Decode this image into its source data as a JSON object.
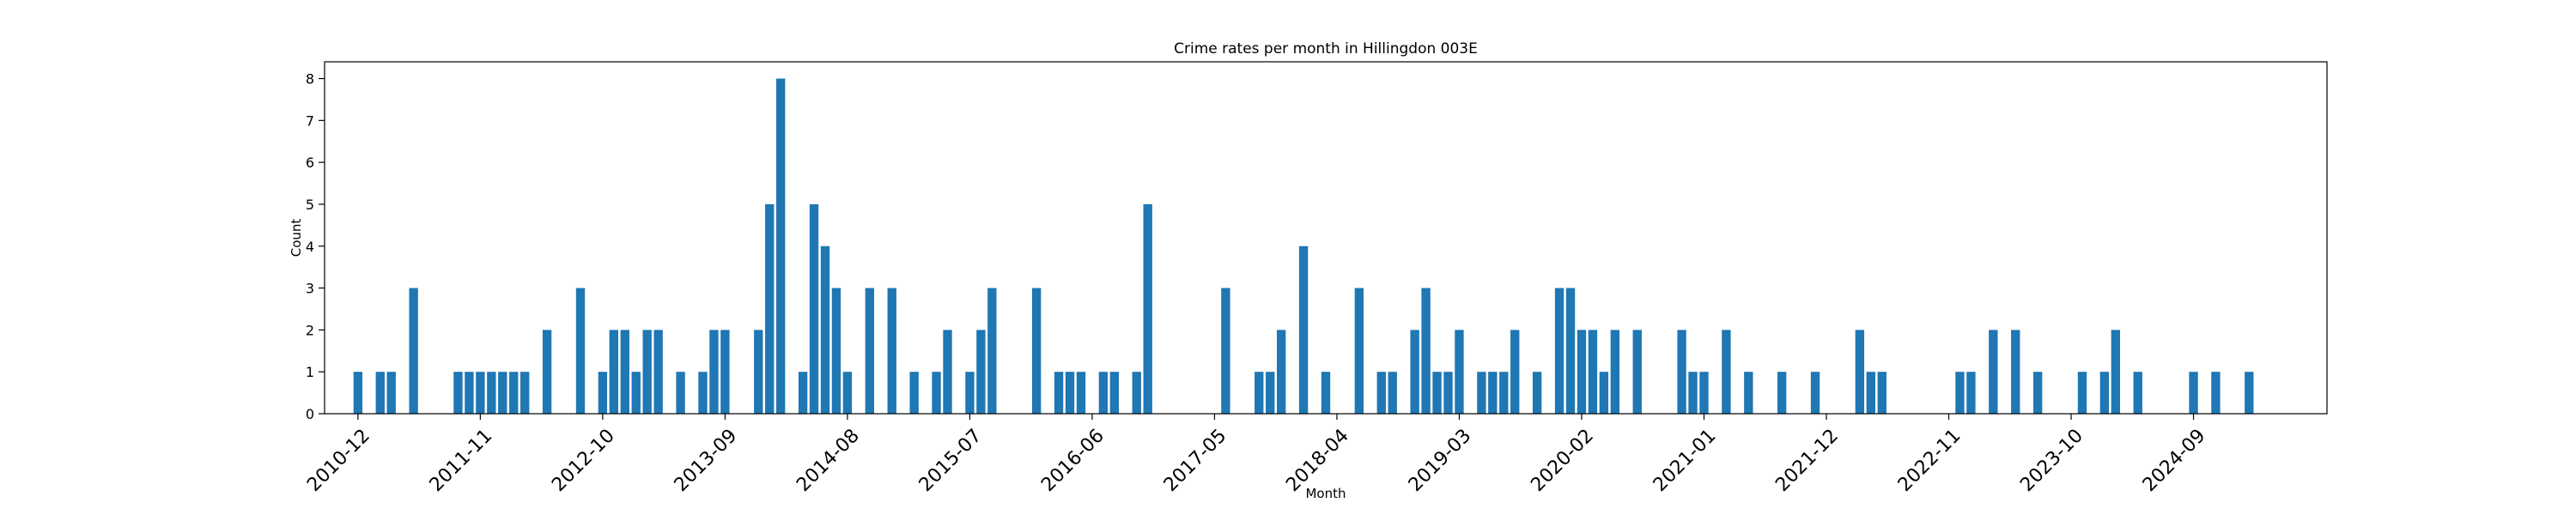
{
  "chart_data": {
    "type": "bar",
    "title": "Crime rates per month in Hillingdon 003E",
    "xlabel": "Month",
    "ylabel": "Count",
    "ylim": [
      0,
      8.4
    ],
    "yticks": [
      0,
      1,
      2,
      3,
      4,
      5,
      6,
      7,
      8
    ],
    "xticks": [
      "2010-12",
      "2011-11",
      "2012-10",
      "2013-09",
      "2014-08",
      "2015-07",
      "2016-06",
      "2017-05",
      "2018-04",
      "2019-03",
      "2020-02",
      "2021-01",
      "2021-12",
      "2022-11",
      "2023-10",
      "2024-09"
    ],
    "grid": false,
    "color": "#1f77b4",
    "categories": [
      "2010-12",
      "2011-02",
      "2011-03",
      "2011-05",
      "2011-09",
      "2011-10",
      "2011-11",
      "2011-12",
      "2012-01",
      "2012-02",
      "2012-03",
      "2012-05",
      "2012-08",
      "2012-10",
      "2012-11",
      "2012-12",
      "2013-01",
      "2013-02",
      "2013-03",
      "2013-05",
      "2013-07",
      "2013-08",
      "2013-09",
      "2013-12",
      "2014-01",
      "2014-02",
      "2014-04",
      "2014-05",
      "2014-06",
      "2014-07",
      "2014-08",
      "2014-10",
      "2014-12",
      "2015-02",
      "2015-04",
      "2015-05",
      "2015-07",
      "2015-08",
      "2015-09",
      "2016-01",
      "2016-03",
      "2016-04",
      "2016-05",
      "2016-07",
      "2016-08",
      "2016-10",
      "2016-11",
      "2017-06",
      "2017-09",
      "2017-10",
      "2017-11",
      "2018-01",
      "2018-03",
      "2018-06",
      "2018-08",
      "2018-09",
      "2018-11",
      "2018-12",
      "2019-01",
      "2019-02",
      "2019-03",
      "2019-05",
      "2019-06",
      "2019-07",
      "2019-08",
      "2019-10",
      "2019-12",
      "2020-01",
      "2020-02",
      "2020-03",
      "2020-04",
      "2020-05",
      "2020-07",
      "2020-11",
      "2020-12",
      "2021-01",
      "2021-03",
      "2021-05",
      "2021-08",
      "2021-11",
      "2022-03",
      "2022-04",
      "2022-05",
      "2022-12",
      "2023-01",
      "2023-03",
      "2023-05",
      "2023-07",
      "2023-11",
      "2024-01",
      "2024-02",
      "2024-04",
      "2024-09",
      "2024-11",
      "2025-02"
    ],
    "values": [
      1,
      1,
      1,
      3,
      1,
      1,
      1,
      1,
      1,
      1,
      1,
      2,
      3,
      1,
      2,
      2,
      1,
      2,
      2,
      1,
      1,
      2,
      2,
      2,
      5,
      8,
      1,
      5,
      4,
      3,
      1,
      3,
      3,
      1,
      1,
      2,
      1,
      2,
      3,
      3,
      1,
      1,
      1,
      1,
      1,
      1,
      5,
      3,
      1,
      1,
      2,
      4,
      1,
      3,
      1,
      1,
      2,
      3,
      1,
      1,
      2,
      1,
      1,
      1,
      2,
      1,
      3,
      3,
      2,
      2,
      1,
      2,
      2,
      2,
      1,
      1,
      2,
      1,
      1,
      1,
      2,
      1,
      1,
      1,
      1,
      2,
      2,
      1,
      1,
      1,
      2,
      1,
      1,
      1,
      1
    ]
  }
}
